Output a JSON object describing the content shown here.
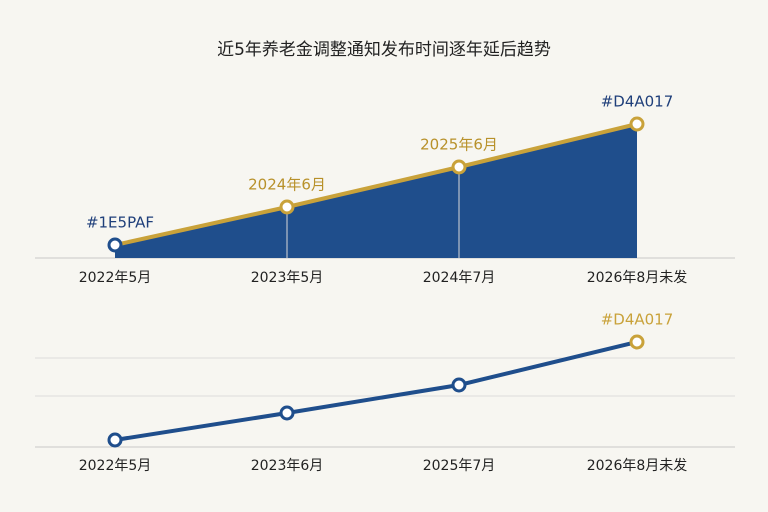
{
  "chart_data": [
    {
      "type": "area",
      "title": "近5年养老金调整通知发布时间逐年延后趋势",
      "categories": [
        "2022年5月",
        "2023年5月",
        "2024年7月",
        "2026年8月未发"
      ],
      "series": [
        {
          "color": "#c9a23a",
          "fill": "#1f4e8c",
          "values": [
            13,
            51,
            91,
            134
          ]
        }
      ],
      "marker_colors": [
        "#1f4e8c",
        "#c9a23a",
        "#c9a23a",
        "#c9a23a"
      ],
      "point_labels": [
        "#1E5PAF",
        "2024年6月",
        "2025年6月",
        "#D4A017"
      ],
      "point_label_colors": [
        "#1f3f7a",
        "#b8912a",
        "#b8912a",
        "#1f3f7a"
      ],
      "ylim": [
        0,
        160
      ]
    },
    {
      "type": "line",
      "categories": [
        "2022年5月",
        "2023年6月",
        "2025年7月",
        "2026年8月未发"
      ],
      "series": [
        {
          "color": "#1f4e8c",
          "values": [
            7,
            34,
            62,
            105
          ]
        }
      ],
      "marker_colors": [
        "#1f4e8c",
        "#1f4e8c",
        "#1f4e8c",
        "#c9a23a"
      ],
      "point_labels": [
        null,
        null,
        null,
        "#D4A017"
      ],
      "point_label_colors": [
        null,
        null,
        null,
        "#c9a23a"
      ],
      "ylim": [
        0,
        120
      ]
    }
  ]
}
